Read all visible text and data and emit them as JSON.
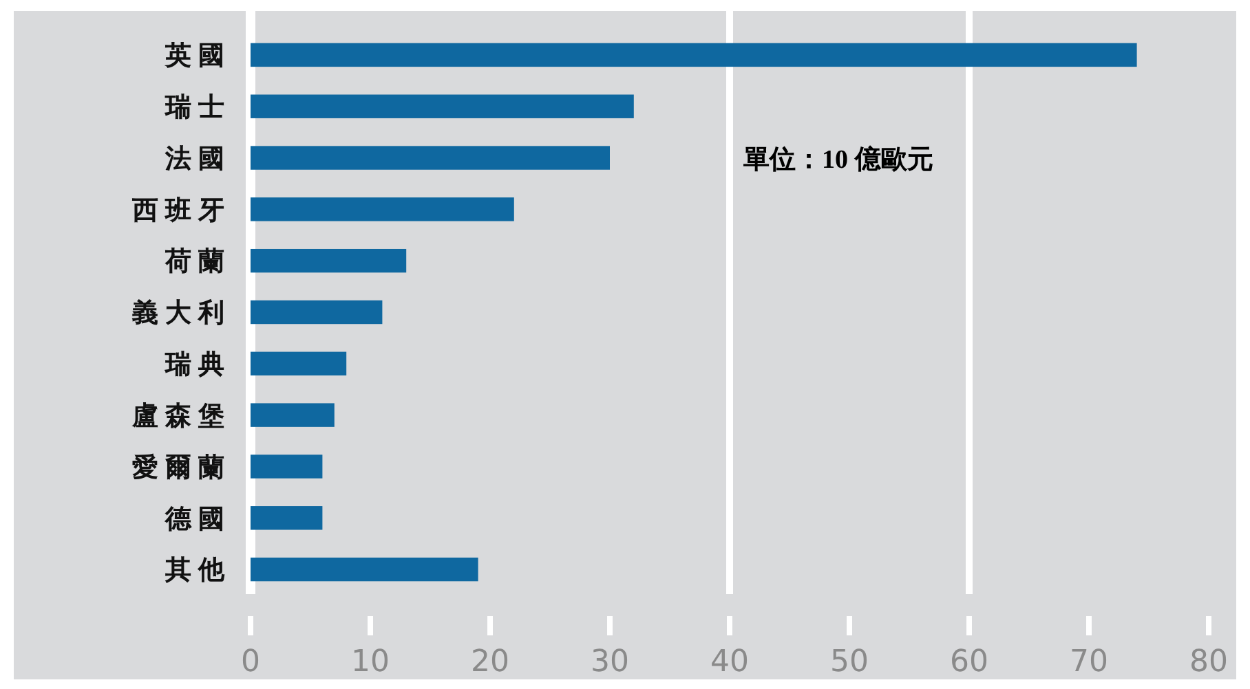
{
  "chart_data": {
    "type": "bar",
    "orientation": "horizontal",
    "categories": [
      "英國",
      "瑞士",
      "法國",
      "西班牙",
      "荷蘭",
      "義大利",
      "瑞典",
      "盧森堡",
      "愛爾蘭",
      "德國",
      "其他"
    ],
    "values": [
      74,
      32,
      30,
      22,
      13,
      11,
      8,
      7,
      6,
      6,
      19
    ],
    "color": "#0f68a0",
    "xlim": [
      0,
      80
    ],
    "xticks": [
      0,
      10,
      20,
      30,
      40,
      50,
      60,
      70,
      80
    ],
    "ref_lines": [
      {
        "axis": "x",
        "value": 40,
        "color": "#ffffff"
      },
      {
        "axis": "x",
        "value": 60,
        "color": "#ffffff"
      }
    ],
    "annotations": [
      "單位：10 億歐元"
    ]
  }
}
